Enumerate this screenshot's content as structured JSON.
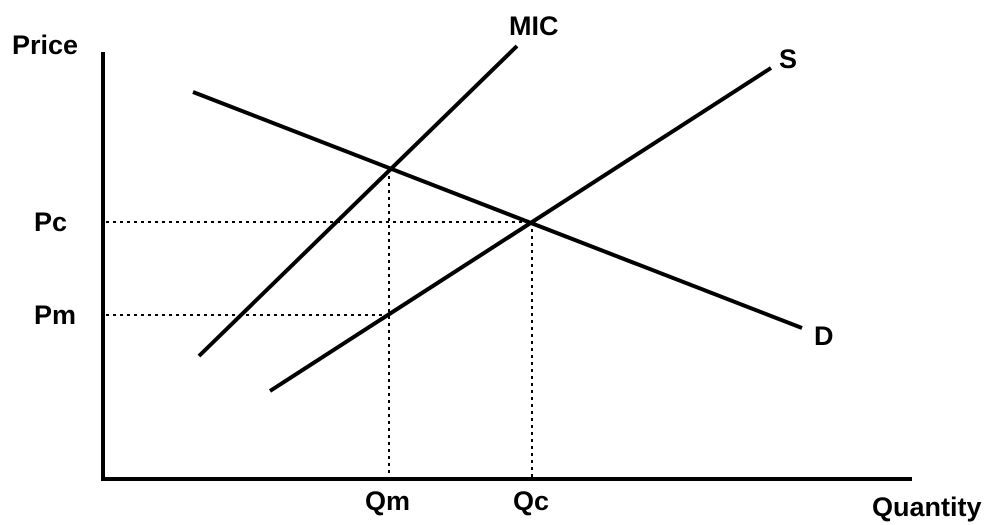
{
  "diagram": {
    "axes": {
      "y_label": "Price",
      "x_label": "Quantity"
    },
    "curves": {
      "mic": "MIC",
      "supply": "S",
      "demand": "D"
    },
    "price_levels": {
      "pc": "Pc",
      "pm": "Pm"
    },
    "quantity_levels": {
      "qm": "Qm",
      "qc": "Qc"
    }
  }
}
